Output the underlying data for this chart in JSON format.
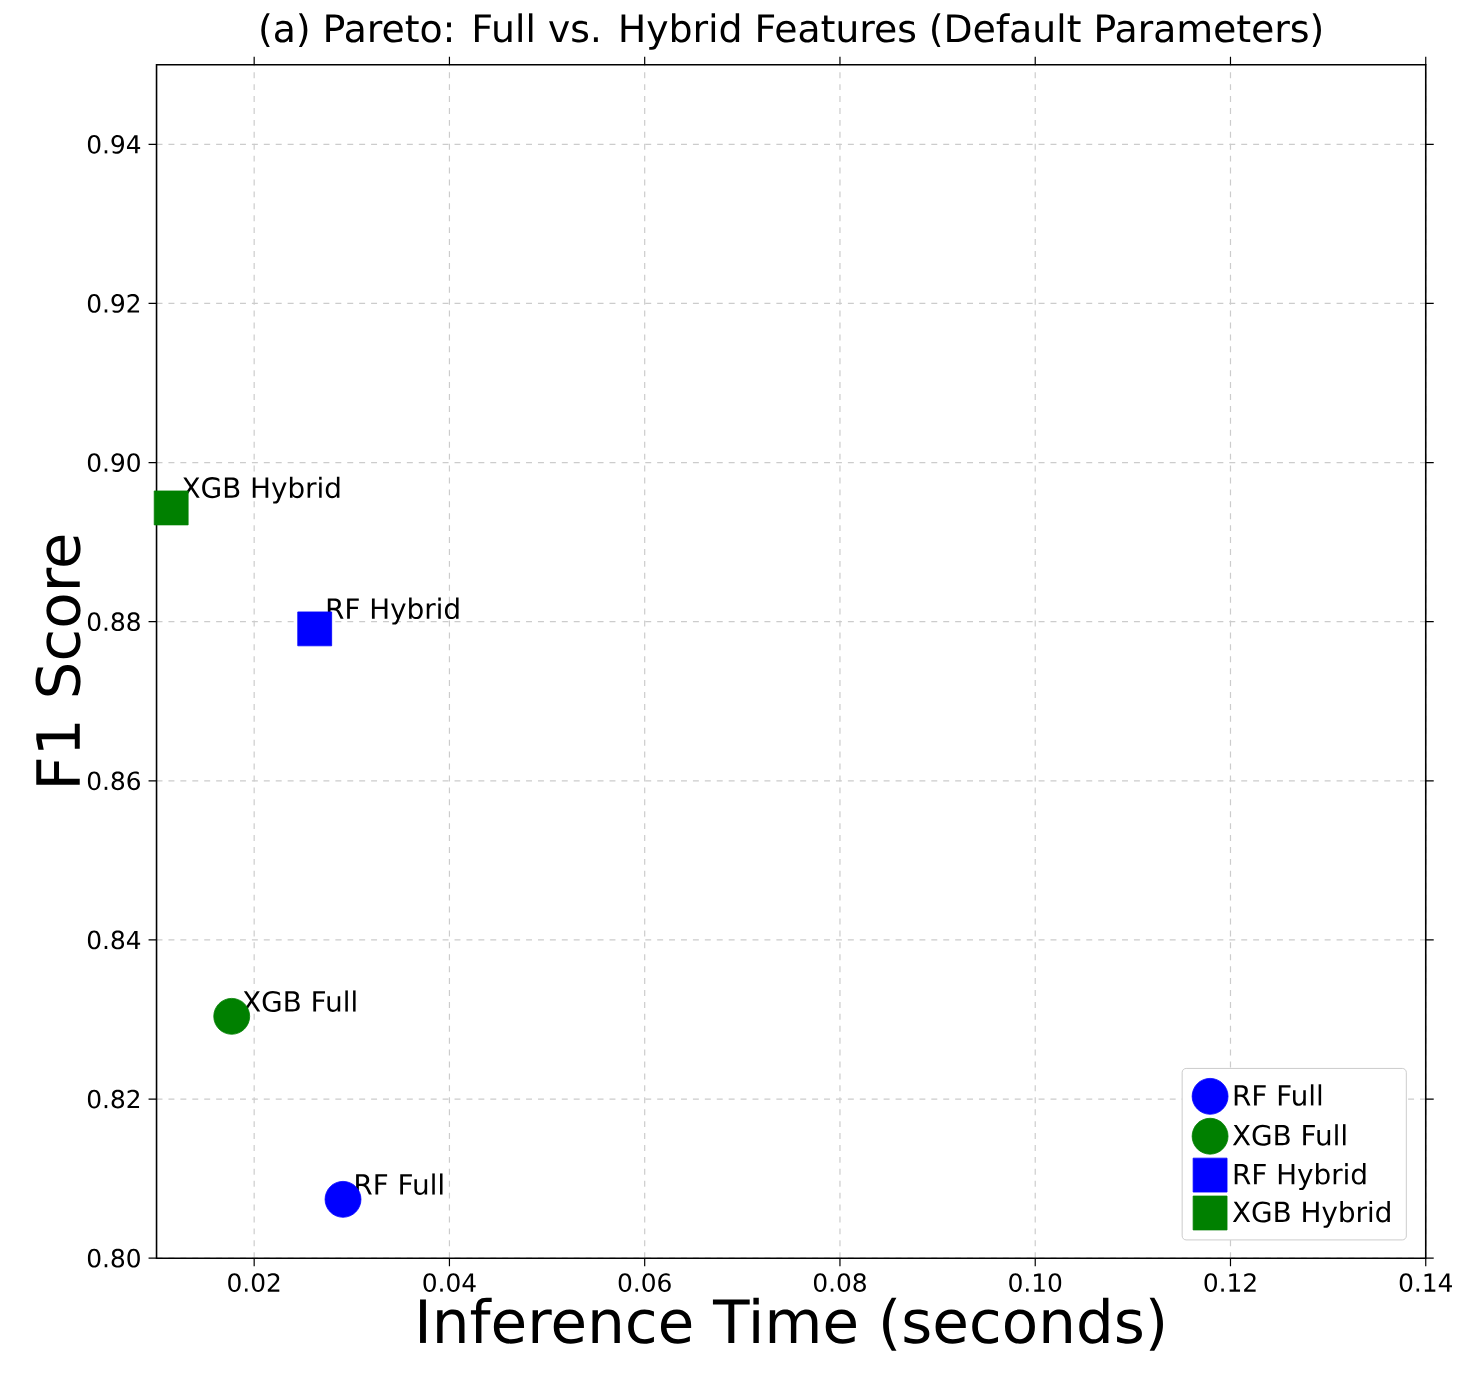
{
  "chart_data": {
    "type": "scatter",
    "title": "(a) Pareto: Full vs. Hybrid Features (Default Parameters)",
    "xlabel": "Inference Time (seconds)",
    "ylabel": "F1 Score",
    "xlim": [
      0.01,
      0.14
    ],
    "ylim": [
      0.8,
      0.95
    ],
    "xticks": [
      {
        "value": 0.02,
        "label": "0.02"
      },
      {
        "value": 0.04,
        "label": "0.04"
      },
      {
        "value": 0.06,
        "label": "0.06"
      },
      {
        "value": 0.08,
        "label": "0.08"
      },
      {
        "value": 0.1,
        "label": "0.10"
      },
      {
        "value": 0.12,
        "label": "0.12"
      },
      {
        "value": 0.14,
        "label": "0.14"
      }
    ],
    "yticks": [
      {
        "value": 0.8,
        "label": "0.80"
      },
      {
        "value": 0.82,
        "label": "0.82"
      },
      {
        "value": 0.84,
        "label": "0.84"
      },
      {
        "value": 0.86,
        "label": "0.86"
      },
      {
        "value": 0.88,
        "label": "0.88"
      },
      {
        "value": 0.9,
        "label": "0.90"
      },
      {
        "value": 0.92,
        "label": "0.92"
      },
      {
        "value": 0.94,
        "label": "0.94"
      }
    ],
    "grid": true,
    "legend": "bottom right",
    "series": [
      {
        "name": "RF Full",
        "color": "#0000ff",
        "marker": "circle",
        "x": [
          0.0291
        ],
        "values": [
          0.8074
        ]
      },
      {
        "name": "XGB Full",
        "color": "#008000",
        "marker": "circle",
        "x": [
          0.0177
        ],
        "values": [
          0.8304
        ]
      },
      {
        "name": "RF Hybrid",
        "color": "#0000ff",
        "marker": "square",
        "x": [
          0.0262
        ],
        "values": [
          0.8791
        ]
      },
      {
        "name": "XGB Hybrid",
        "color": "#008000",
        "marker": "square",
        "x": [
          0.0115
        ],
        "values": [
          0.8943
        ]
      }
    ],
    "annotations": [
      {
        "text": "RF Full",
        "x": 0.0291,
        "y": 0.8074
      },
      {
        "text": "XGB Full",
        "x": 0.0177,
        "y": 0.8304
      },
      {
        "text": "RF Hybrid",
        "x": 0.0262,
        "y": 0.8791
      },
      {
        "text": "XGB Hybrid",
        "x": 0.0115,
        "y": 0.8943
      }
    ]
  }
}
